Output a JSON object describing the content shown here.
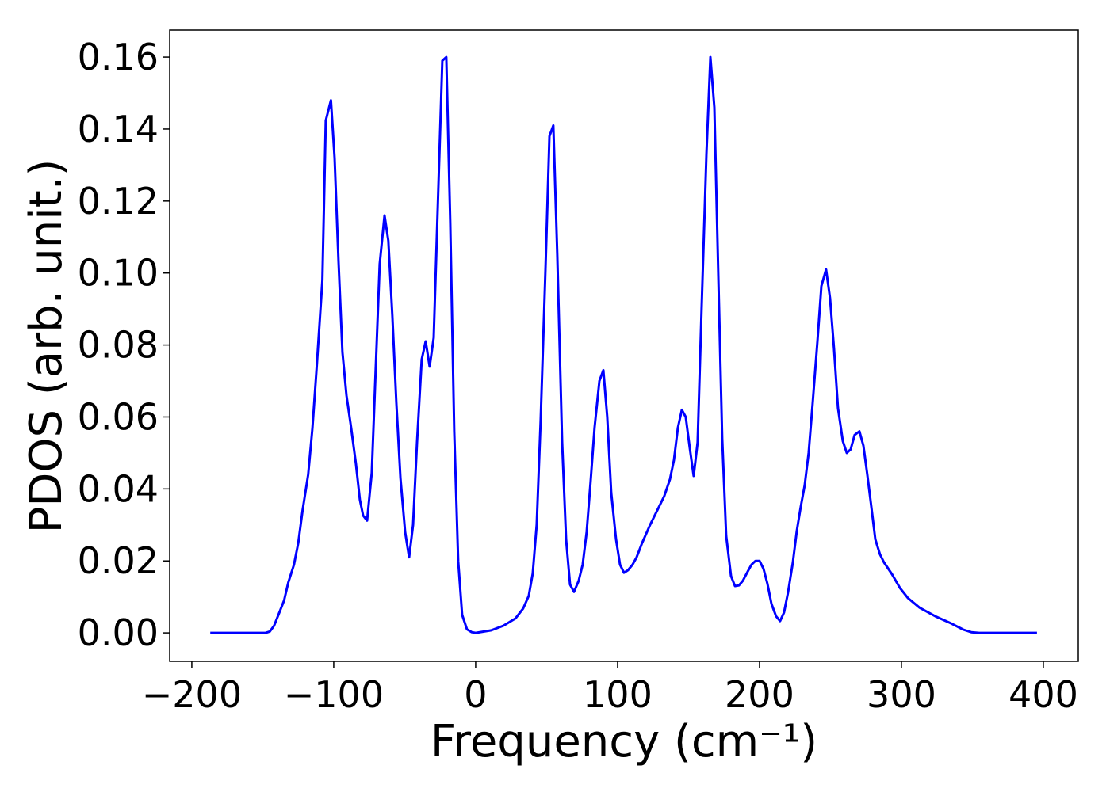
{
  "chart_data": {
    "type": "line",
    "x_label": "Frequency (cm⁻¹)",
    "y_label": "PDOS (arb. unit.)",
    "xlim": [
      -215.6,
      424.6
    ],
    "ylim": [
      -0.0079,
      0.1675
    ],
    "xticks": [
      {
        "value": -200,
        "label": "−200"
      },
      {
        "value": -100,
        "label": "−100"
      },
      0,
      100,
      200,
      300,
      400
    ],
    "yticks": [
      {
        "value": 0,
        "label": "0.00"
      },
      {
        "value": 0.02,
        "label": "0.02"
      },
      {
        "value": 0.04,
        "label": "0.04"
      },
      {
        "value": 0.06,
        "label": "0.06"
      },
      {
        "value": 0.08,
        "label": "0.08"
      },
      {
        "value": 0.1,
        "label": "0.10"
      },
      {
        "value": 0.12,
        "label": "0.12"
      },
      {
        "value": 0.14,
        "label": "0.14"
      },
      {
        "value": 0.16,
        "label": "0.16"
      }
    ],
    "grid": false,
    "x": [
      -187,
      -148,
      -145,
      -142,
      -139,
      -135,
      -132,
      -128,
      -125,
      -122,
      -118,
      -115,
      -112,
      -108,
      -105.6,
      -102,
      -99.4,
      -96.6,
      -93.9,
      -91,
      -87.7,
      -84.4,
      -81.6,
      -79.3,
      -76.5,
      -73.2,
      -67.6,
      -64.2,
      -61.5,
      -58.7,
      -55.9,
      -53,
      -49.7,
      -46.9,
      -44.1,
      -41.3,
      -38,
      -35.2,
      -32.4,
      -29.6,
      -23.5,
      -20.7,
      -17.9,
      -15.1,
      -12.3,
      -9.5,
      -6.1,
      -2.8,
      0,
      11,
      19.6,
      28,
      33.5,
      37.4,
      40.2,
      43,
      45.8,
      49.2,
      52,
      54.7,
      57.5,
      60.9,
      63.7,
      66.5,
      69.3,
      72.6,
      75.4,
      78.2,
      81,
      83.8,
      87.2,
      90,
      92.7,
      95.5,
      98.9,
      101.7,
      104.5,
      107.3,
      110.6,
      113.4,
      117.3,
      122.9,
      128.5,
      132.9,
      136.9,
      139.7,
      142.5,
      145.3,
      148,
      150.8,
      153.6,
      156.4,
      159.2,
      162.6,
      165.4,
      168.2,
      171,
      173.7,
      176.5,
      179.9,
      182.7,
      185.5,
      188.3,
      191.6,
      194.4,
      197.2,
      200,
      202.8,
      205.6,
      208.4,
      211.7,
      214.5,
      217.3,
      220.1,
      223.5,
      226.3,
      229,
      231.8,
      234.6,
      237.4,
      240.8,
      243.6,
      246.9,
      249.7,
      252.5,
      255.3,
      258.7,
      261.5,
      264.2,
      267,
      270.4,
      273.2,
      276,
      278.8,
      281.6,
      284.9,
      287.7,
      293.3,
      298.9,
      304.5,
      312.8,
      324,
      335.2,
      343.6,
      349.2,
      354.7,
      395.5
    ],
    "series": [
      {
        "name": "PDOS",
        "color": "#0000ff",
        "values": [
          0,
          0,
          0.0004,
          0.002,
          0.005,
          0.009,
          0.014,
          0.019,
          0.025,
          0.034,
          0.044,
          0.057,
          0.074,
          0.098,
          0.1424,
          0.148,
          0.132,
          0.103,
          0.078,
          0.066,
          0.057,
          0.047,
          0.037,
          0.0326,
          0.0312,
          0.0445,
          0.1025,
          0.116,
          0.109,
          0.088,
          0.064,
          0.043,
          0.028,
          0.021,
          0.03,
          0.053,
          0.076,
          0.081,
          0.074,
          0.082,
          0.159,
          0.16,
          0.114,
          0.056,
          0.02,
          0.005,
          0.001,
          0.0002,
          0,
          0.0007,
          0.002,
          0.004,
          0.0068,
          0.0103,
          0.0165,
          0.03,
          0.059,
          0.101,
          0.138,
          0.141,
          0.105,
          0.053,
          0.026,
          0.0134,
          0.0114,
          0.0145,
          0.019,
          0.028,
          0.042,
          0.057,
          0.07,
          0.073,
          0.06,
          0.039,
          0.026,
          0.019,
          0.0167,
          0.0174,
          0.019,
          0.021,
          0.025,
          0.03,
          0.0345,
          0.038,
          0.0427,
          0.048,
          0.057,
          0.062,
          0.06,
          0.0515,
          0.0436,
          0.053,
          0.09,
          0.133,
          0.16,
          0.146,
          0.099,
          0.054,
          0.027,
          0.0158,
          0.013,
          0.0132,
          0.0145,
          0.017,
          0.019,
          0.02,
          0.02,
          0.0178,
          0.0136,
          0.0081,
          0.0046,
          0.0033,
          0.0057,
          0.0112,
          0.0196,
          0.0284,
          0.035,
          0.041,
          0.05,
          0.0636,
          0.081,
          0.0964,
          0.101,
          0.093,
          0.079,
          0.0625,
          0.0533,
          0.05,
          0.051,
          0.055,
          0.056,
          0.052,
          0.0438,
          0.035,
          0.026,
          0.0218,
          0.0196,
          0.0163,
          0.0125,
          0.0097,
          0.007,
          0.0046,
          0.0026,
          0.0009,
          0.0002,
          0,
          0
        ]
      }
    ]
  }
}
